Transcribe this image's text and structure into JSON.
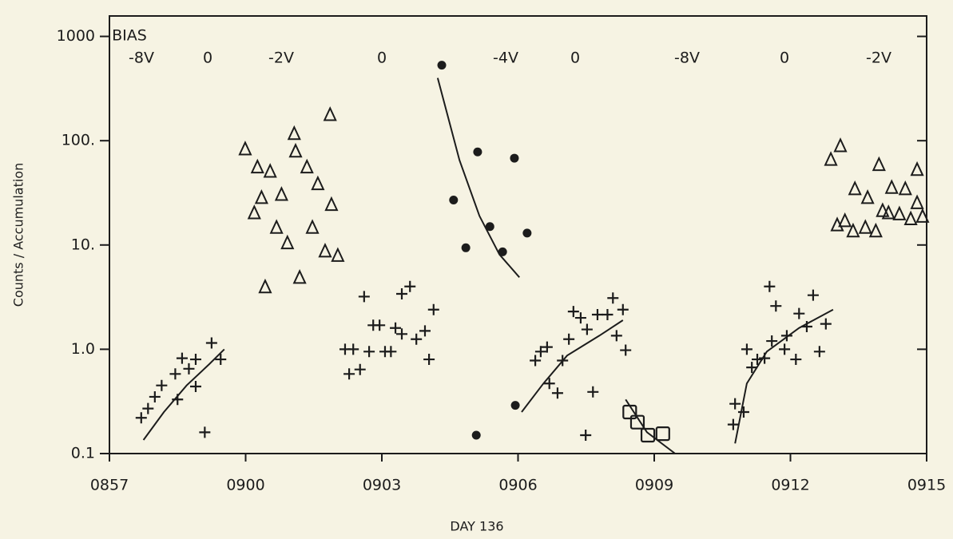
{
  "chart_data": {
    "type": "scatter",
    "annotations": [
      "BIAS",
      "-8V",
      "0",
      "-2V",
      "0",
      "-4V",
      "0",
      "-8V",
      "0",
      "-2V"
    ],
    "xlabel": "DAY 136",
    "ylabel": "Counts / Accumulation",
    "xlim": [
      537,
      555
    ],
    "xticks": [
      {
        "value": 537,
        "label": "0857"
      },
      {
        "value": 540,
        "label": "0900"
      },
      {
        "value": 543,
        "label": "0903"
      },
      {
        "value": 546,
        "label": "0906"
      },
      {
        "value": 549,
        "label": "0909"
      },
      {
        "value": 552,
        "label": "0912"
      },
      {
        "value": 555,
        "label": "0915"
      }
    ],
    "ylim": [
      0.1,
      1570
    ],
    "yticks": [
      1000,
      {
        "value": 100,
        "label": "100."
      },
      {
        "value": 10,
        "label": "10."
      },
      {
        "value": 1,
        "label": "1.0"
      },
      0.1
    ],
    "log_y": true,
    "color": "#1c1c1c",
    "series": [
      {
        "marker": "plus",
        "x": [
          537.7,
          537.85,
          538.0,
          538.15,
          538.5,
          538.45,
          538.6,
          538.75,
          538.9,
          538.9,
          539.1,
          539.25,
          539.45,
          542.19,
          542.37,
          542.28,
          542.52,
          542.61,
          542.72,
          542.81,
          542.95,
          543.07,
          543.2,
          543.3,
          543.44,
          543.44,
          543.62,
          543.76,
          543.95,
          544.04,
          544.14,
          546.38,
          546.5,
          546.64,
          546.69,
          546.87,
          546.98,
          547.12,
          547.22,
          547.38,
          547.52,
          547.49,
          547.65,
          547.75,
          547.97,
          548.09,
          548.17,
          548.31,
          548.37,
          550.74,
          550.78,
          550.97,
          551.04,
          551.15,
          551.27,
          551.43,
          551.54,
          551.59,
          551.68,
          551.92,
          551.87,
          552.12,
          552.19,
          552.36,
          552.5,
          552.64,
          552.78
        ],
        "values": [
          0.22,
          0.27,
          0.35,
          0.45,
          0.33,
          0.58,
          0.82,
          0.65,
          0.8,
          0.44,
          0.16,
          1.15,
          0.8,
          1.0,
          1.0,
          0.58,
          0.64,
          3.2,
          0.95,
          1.7,
          1.7,
          0.95,
          0.95,
          1.6,
          1.4,
          3.4,
          4.0,
          1.25,
          1.5,
          0.8,
          2.4,
          0.78,
          0.95,
          1.05,
          0.47,
          0.38,
          0.78,
          1.25,
          2.3,
          2.0,
          1.55,
          0.15,
          0.39,
          2.15,
          2.15,
          3.1,
          1.35,
          2.4,
          0.98,
          0.19,
          0.3,
          0.25,
          1.0,
          0.67,
          0.8,
          0.82,
          4.0,
          1.2,
          2.6,
          1.35,
          1.0,
          0.8,
          2.2,
          1.65,
          3.3,
          0.95,
          1.75
        ]
      },
      {
        "marker": "triangle",
        "x": [
          539.99,
          540.26,
          540.54,
          540.35,
          540.19,
          540.79,
          540.68,
          540.92,
          541.07,
          541.1,
          541.19,
          541.35,
          541.47,
          541.59,
          541.86,
          541.75,
          541.89,
          542.03,
          540.43,
          552.89,
          553.1,
          553.03,
          553.2,
          553.38,
          553.42,
          553.65,
          553.7,
          553.95,
          553.88,
          554.03,
          554.16,
          554.23,
          554.4,
          554.53,
          554.65,
          554.79,
          554.79,
          554.91
        ],
        "values": [
          82,
          55,
          50,
          28,
          20,
          30,
          14.5,
          10.3,
          115,
          78,
          4.8,
          55,
          14.5,
          38,
          175,
          8.6,
          24,
          7.8,
          3.9,
          65,
          88,
          15.3,
          16.8,
          13.4,
          34,
          14.5,
          28,
          58,
          13.4,
          21,
          20,
          35,
          19.5,
          34,
          17.5,
          52,
          25,
          18.5
        ]
      },
      {
        "marker": "circle",
        "x": [
          544.32,
          544.58,
          544.85,
          545.11,
          545.38,
          545.66,
          545.92,
          546.2,
          545.94,
          545.08
        ],
        "values": [
          530,
          27,
          9.4,
          78,
          15,
          8.6,
          68,
          13,
          0.29,
          0.15
        ]
      },
      {
        "marker": "square",
        "x": [
          548.46,
          548.63,
          548.86,
          549.19
        ],
        "values": [
          0.25,
          0.2,
          0.15,
          0.155
        ]
      },
      {
        "marker": "line",
        "x": [
          537.75,
          538.2,
          538.7,
          539.2,
          539.53
        ],
        "values": [
          0.135,
          0.25,
          0.45,
          0.72,
          1.0
        ]
      },
      {
        "marker": "line",
        "x": [
          544.23,
          544.71,
          545.15,
          545.59,
          546.03
        ],
        "values": [
          400,
          65,
          19,
          8.1,
          4.9
        ]
      },
      {
        "marker": "line",
        "x": [
          546.08,
          546.56,
          547.08,
          547.79,
          548.31
        ],
        "values": [
          0.25,
          0.47,
          0.87,
          1.35,
          1.9
        ]
      },
      {
        "marker": "line",
        "x": [
          548.37,
          548.84,
          549.46
        ],
        "values": [
          0.33,
          0.16,
          0.1
        ]
      },
      {
        "marker": "line",
        "x": [
          550.78,
          551.04,
          551.48,
          552.19,
          552.94
        ],
        "values": [
          0.125,
          0.47,
          0.95,
          1.6,
          2.4
        ]
      }
    ]
  }
}
